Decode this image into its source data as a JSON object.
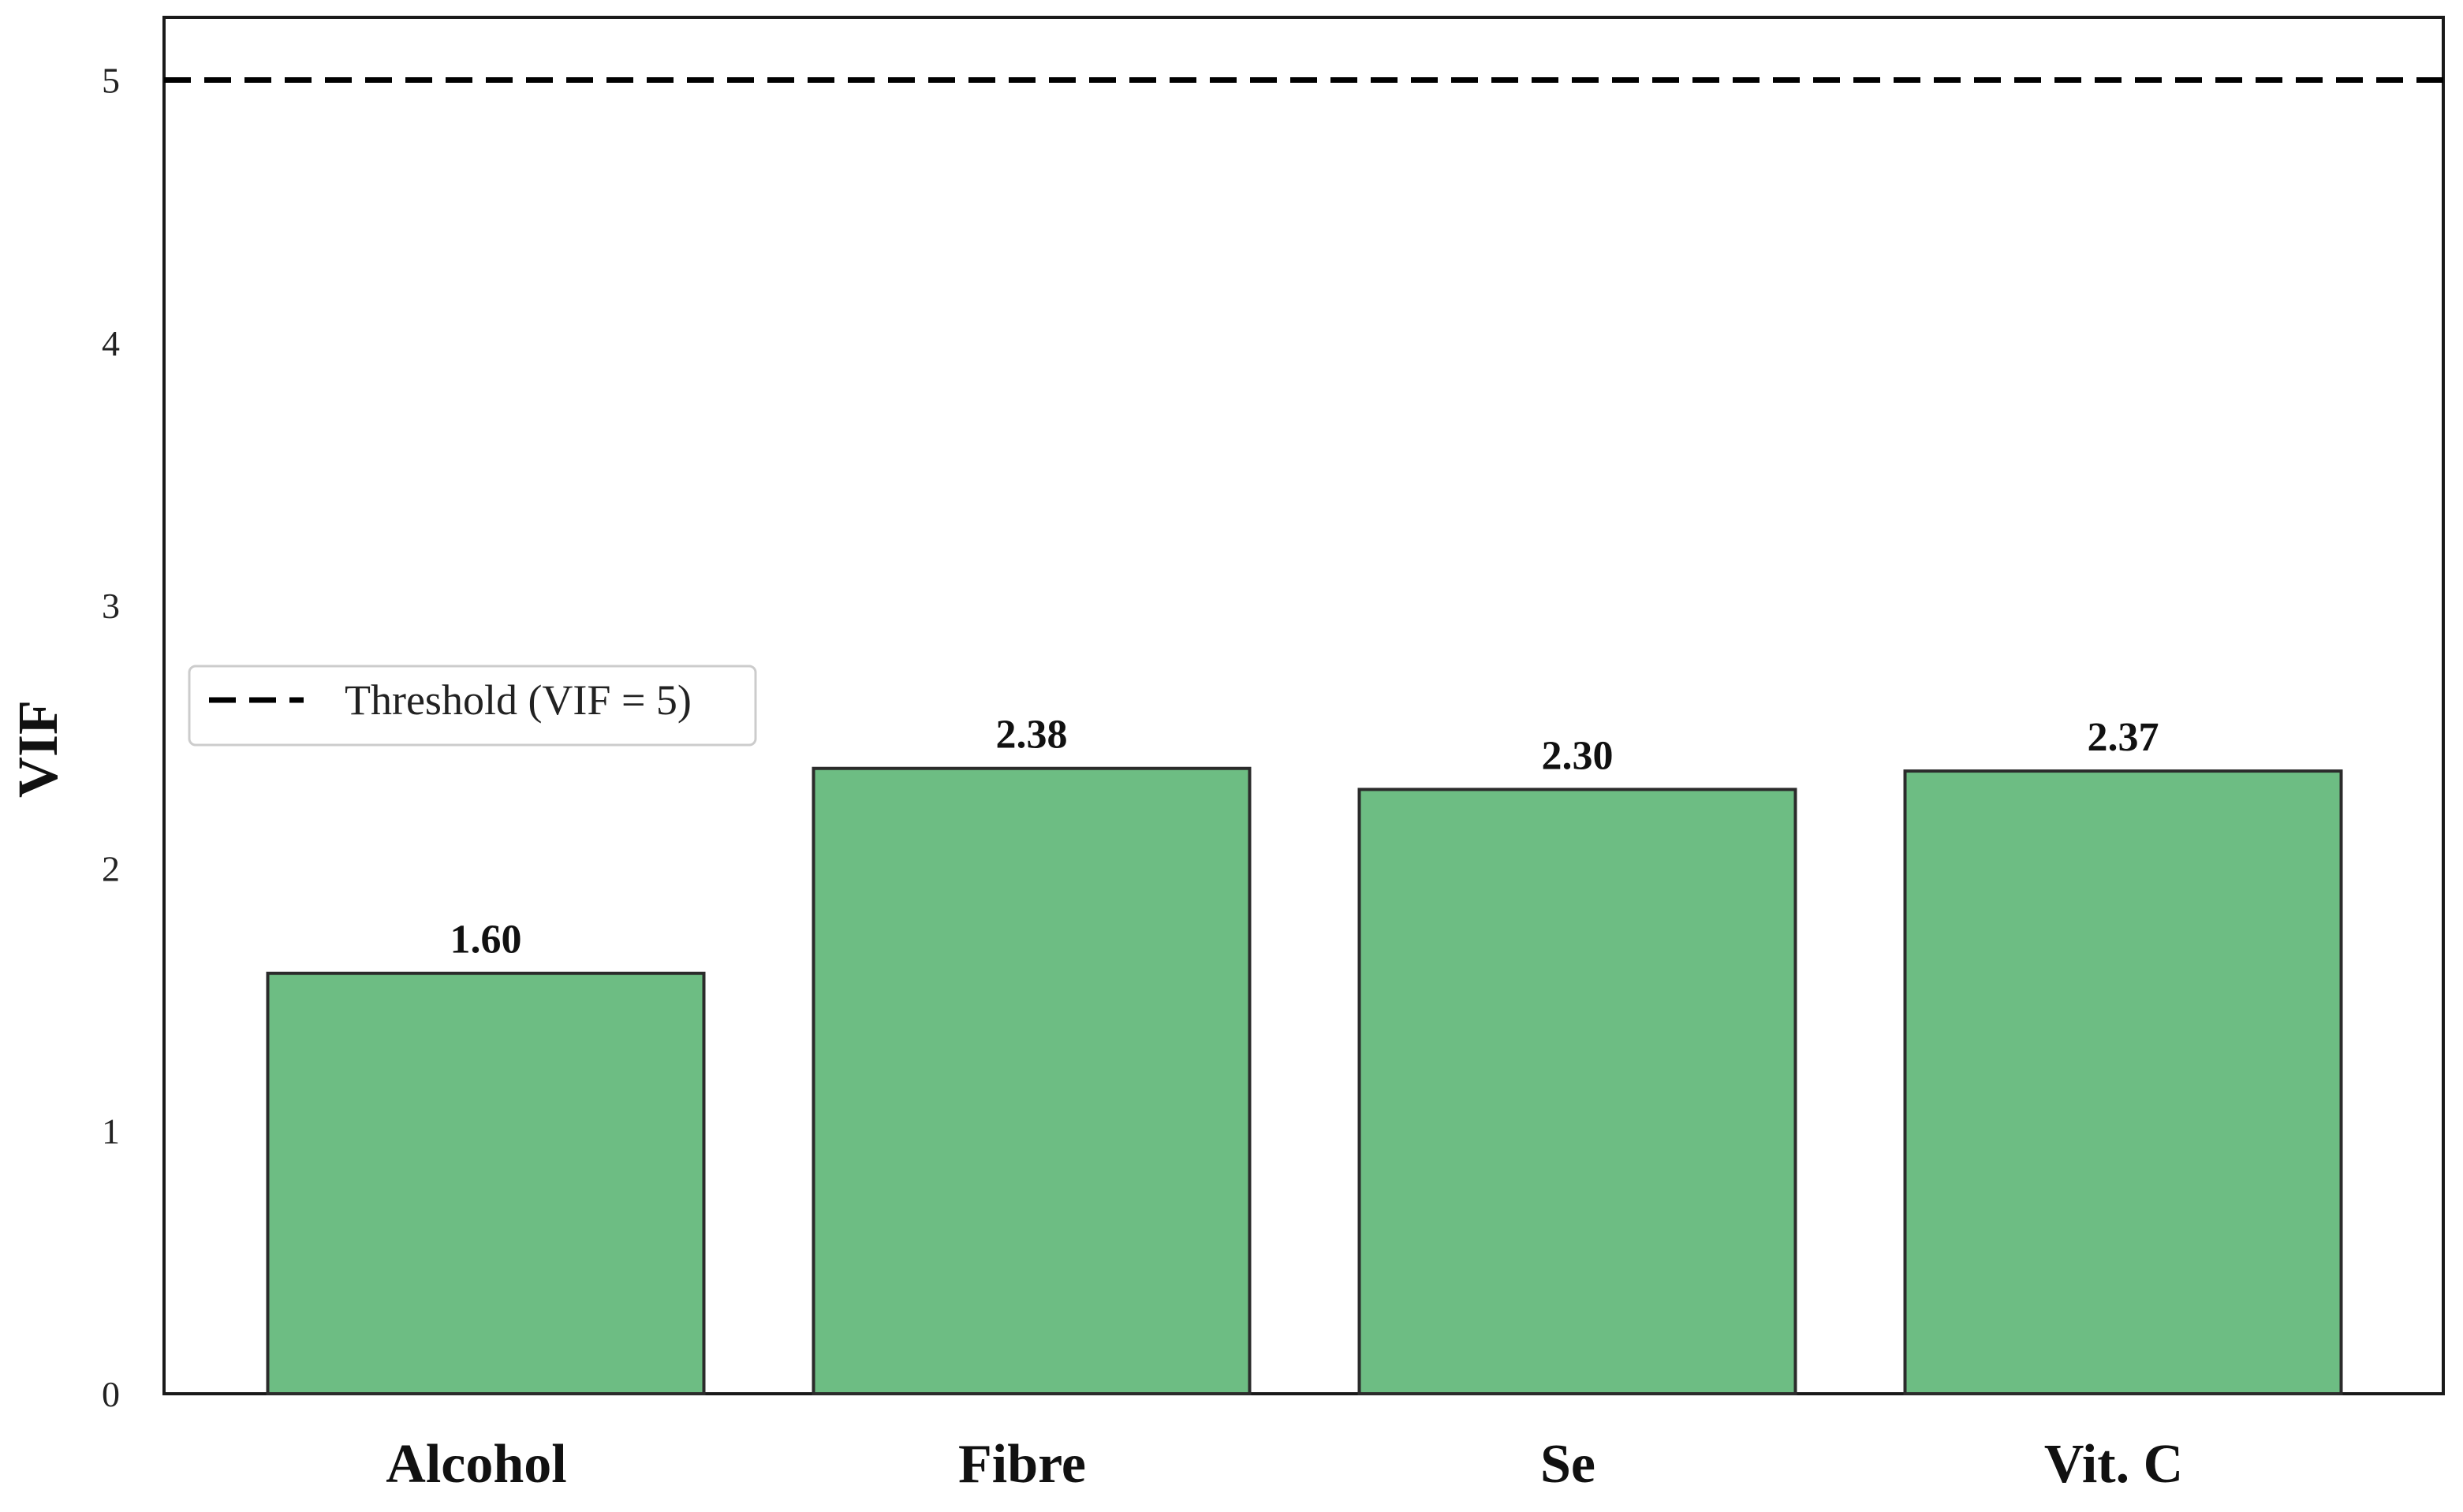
{
  "chart_data": {
    "type": "bar",
    "categories": [
      "Alcohol",
      "Fibre",
      "Se",
      "Vit. C"
    ],
    "values": [
      1.6,
      2.38,
      2.3,
      2.37
    ],
    "value_labels": [
      "1.60",
      "2.38",
      "2.30",
      "2.37"
    ],
    "title": "",
    "xlabel": "",
    "ylabel": "VIF",
    "ylim": [
      0,
      5.25
    ],
    "yticks": [
      0,
      1,
      2,
      3,
      4,
      5
    ],
    "ytick_labels": [
      "0",
      "1",
      "2",
      "3",
      "4",
      "5"
    ],
    "threshold": {
      "value": 5,
      "style": "dashed",
      "legend_label": "Threshold (VIF = 5)"
    },
    "legend_position": "center-left",
    "grid": false,
    "colors": {
      "bar_fill": "#6dbd83",
      "bar_edge": "#2b2b2b",
      "threshold_line": "#000000"
    }
  }
}
